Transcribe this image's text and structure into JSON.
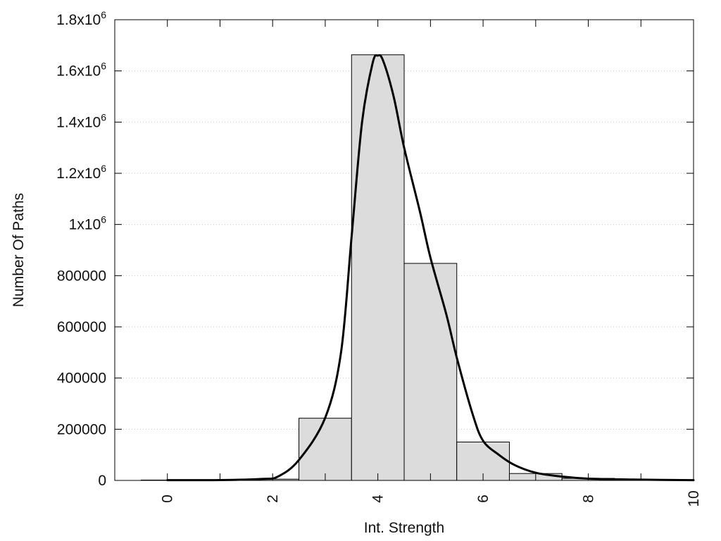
{
  "chart_data": {
    "type": "bar",
    "title": "",
    "xlabel": "Int. Strength",
    "ylabel": "Number Of Paths",
    "xlim": [
      -1,
      10
    ],
    "ylim": [
      0,
      1800000
    ],
    "grid": "horizontal-dotted",
    "x_ticks": [
      0,
      2,
      4,
      6,
      8,
      10
    ],
    "y_ticks": [
      {
        "value": 0,
        "label": "0"
      },
      {
        "value": 200000,
        "label": "200000"
      },
      {
        "value": 400000,
        "label": "400000"
      },
      {
        "value": 600000,
        "label": "600000"
      },
      {
        "value": 800000,
        "label": "800000"
      },
      {
        "value": 1000000,
        "label": "1x10",
        "exp": "6"
      },
      {
        "value": 1200000,
        "label": "1.2x10",
        "exp": "6"
      },
      {
        "value": 1400000,
        "label": "1.4x10",
        "exp": "6"
      },
      {
        "value": 1600000,
        "label": "1.6x10",
        "exp": "6"
      },
      {
        "value": 1800000,
        "label": "1.8x10",
        "exp": "6"
      }
    ],
    "bar_width": 1,
    "bars": [
      {
        "x": 0,
        "value": 1500
      },
      {
        "x": 1,
        "value": 1500
      },
      {
        "x": 2,
        "value": 5000
      },
      {
        "x": 3,
        "value": 243000
      },
      {
        "x": 4,
        "value": 1663000
      },
      {
        "x": 5,
        "value": 848000
      },
      {
        "x": 6,
        "value": 150000
      },
      {
        "x": 7,
        "value": 27000
      },
      {
        "x": 8,
        "value": 8000
      },
      {
        "x": 9,
        "value": 2000
      }
    ],
    "curve": {
      "x": [
        0,
        1,
        1.8,
        2.1,
        2.5,
        3.0,
        3.3,
        3.5,
        3.7,
        3.9,
        4.0,
        4.1,
        4.3,
        4.5,
        4.8,
        5.0,
        5.3,
        5.5,
        5.8,
        6.0,
        6.3,
        6.6,
        7.0,
        7.5,
        8.0,
        9.0,
        10.0
      ],
      "y": [
        1000,
        1500,
        6000,
        15000,
        80000,
        245000,
        500000,
        950000,
        1400000,
        1630000,
        1660000,
        1640000,
        1500000,
        1300000,
        1050000,
        870000,
        650000,
        480000,
        260000,
        155000,
        100000,
        60000,
        30000,
        15000,
        7000,
        3000,
        1000
      ]
    }
  }
}
